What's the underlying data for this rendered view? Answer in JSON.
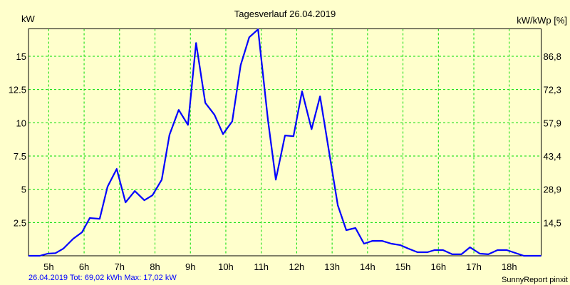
{
  "chart_data": {
    "type": "line",
    "title": "Tagesverlauf 26.04.2019",
    "ylabel": "kW",
    "y2label": "kW/kWp [%]",
    "xlabel": "",
    "xlim": [
      4.43,
      18.9
    ],
    "ylim": [
      0,
      17.06
    ],
    "grid": true,
    "x_ticks": [
      5,
      6,
      7,
      8,
      9,
      10,
      11,
      12,
      13,
      14,
      15,
      16,
      17,
      18
    ],
    "x_tick_labels": [
      "5h",
      "6h",
      "7h",
      "8h",
      "9h",
      "10h",
      "11h",
      "12h",
      "13h",
      "14h",
      "15h",
      "16h",
      "17h",
      "18h"
    ],
    "y_ticks": [
      2.5,
      5,
      7.5,
      10,
      12.5,
      15
    ],
    "y_tick_labels": [
      "2.5",
      "5",
      "7.5",
      "10",
      "12.5",
      "15"
    ],
    "y2_tick_labels": [
      "14,5",
      "28,9",
      "43,4",
      "57,9",
      "72,3",
      "86,8"
    ],
    "series": [
      {
        "name": "kW",
        "color": "#0000ff",
        "points": [
          [
            4.43,
            0
          ],
          [
            4.75,
            0
          ],
          [
            4.97,
            0.16
          ],
          [
            5.19,
            0.2
          ],
          [
            5.41,
            0.53
          ],
          [
            5.69,
            1.28
          ],
          [
            5.94,
            1.77
          ],
          [
            6.16,
            2.84
          ],
          [
            6.44,
            2.78
          ],
          [
            6.66,
            5.19
          ],
          [
            6.92,
            6.53
          ],
          [
            7.17,
            4.01
          ],
          [
            7.43,
            4.87
          ],
          [
            7.7,
            4.17
          ],
          [
            7.93,
            4.55
          ],
          [
            8.19,
            5.72
          ],
          [
            8.41,
            9.1
          ],
          [
            8.67,
            10.97
          ],
          [
            8.93,
            9.84
          ],
          [
            9.16,
            16.0
          ],
          [
            9.42,
            11.5
          ],
          [
            9.68,
            10.6
          ],
          [
            9.92,
            9.15
          ],
          [
            10.18,
            10.1
          ],
          [
            10.42,
            14.34
          ],
          [
            10.66,
            16.43
          ],
          [
            10.91,
            17.02
          ],
          [
            11.19,
            10.2
          ],
          [
            11.41,
            5.72
          ],
          [
            11.67,
            9.04
          ],
          [
            11.91,
            8.99
          ],
          [
            12.15,
            12.36
          ],
          [
            12.42,
            9.52
          ],
          [
            12.66,
            11.98
          ],
          [
            12.92,
            7.7
          ],
          [
            13.16,
            3.8
          ],
          [
            13.4,
            1.93
          ],
          [
            13.66,
            2.09
          ],
          [
            13.9,
            0.91
          ],
          [
            14.14,
            1.12
          ],
          [
            14.41,
            1.12
          ],
          [
            14.67,
            0.91
          ],
          [
            14.93,
            0.8
          ],
          [
            15.15,
            0.54
          ],
          [
            15.41,
            0.27
          ],
          [
            15.69,
            0.27
          ],
          [
            15.89,
            0.43
          ],
          [
            16.13,
            0.43
          ],
          [
            16.39,
            0.11
          ],
          [
            16.65,
            0.11
          ],
          [
            16.89,
            0.64
          ],
          [
            17.17,
            0.16
          ],
          [
            17.41,
            0.11
          ],
          [
            17.67,
            0.43
          ],
          [
            17.93,
            0.43
          ],
          [
            18.41,
            0
          ],
          [
            18.9,
            0
          ]
        ]
      }
    ],
    "footer_left": "26.04.2019 Tot: 69,02 kWh Max: 17,02 kW",
    "footer_right": "SunnyReport pinxit"
  },
  "colors": {
    "background": "#ffffcc",
    "grid": "#00dd00",
    "line": "#0000ff",
    "footer": "#0000ff"
  }
}
